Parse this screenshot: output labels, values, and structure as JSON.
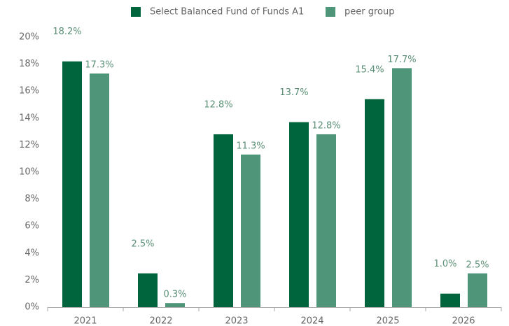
{
  "chart_data": {
    "type": "bar",
    "categories": [
      "2021",
      "2022",
      "2023",
      "2024",
      "2025",
      "2026"
    ],
    "series": [
      {
        "name": "Select Balanced Fund of Funds A1",
        "color": "#00643c",
        "values": [
          18.2,
          2.5,
          12.8,
          13.7,
          15.4,
          1.0
        ],
        "value_labels": [
          "18.2%",
          "2.5%",
          "12.8%",
          "13.7%",
          "15.4%",
          "1.0%"
        ]
      },
      {
        "name": "peer group",
        "color": "#4f957a",
        "values": [
          17.3,
          0.3,
          11.3,
          12.8,
          17.7,
          2.5
        ],
        "value_labels": [
          "17.3%",
          "0.3%",
          "11.3%",
          "12.8%",
          "17.7%",
          "2.5%"
        ]
      }
    ],
    "ylim": [
      0,
      20
    ],
    "yticks": [
      {
        "value": 0,
        "label": "0%"
      },
      {
        "value": 2,
        "label": "2%"
      },
      {
        "value": 4,
        "label": "4%"
      },
      {
        "value": 6,
        "label": "6%"
      },
      {
        "value": 8,
        "label": "8%"
      },
      {
        "value": 10,
        "label": "10%"
      },
      {
        "value": 12,
        "label": "12%"
      },
      {
        "value": 14,
        "label": "14%"
      },
      {
        "value": 16,
        "label": "16%"
      },
      {
        "value": 18,
        "label": "18%"
      },
      {
        "value": 20,
        "label": "20%"
      }
    ],
    "grid": false,
    "legend": "top"
  }
}
